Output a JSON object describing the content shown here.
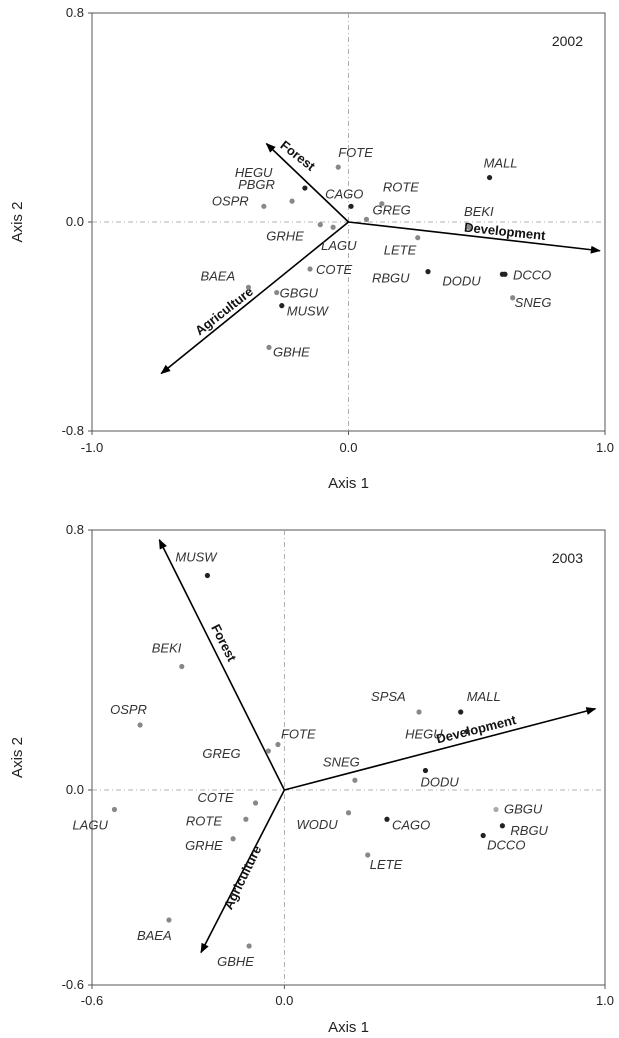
{
  "chart_data": [
    {
      "type": "scatter",
      "year_label": "2002",
      "xlabel": "Axis 1",
      "ylabel": "Axis 2",
      "xlim": [
        -1.0,
        1.0
      ],
      "ylim": [
        -0.8,
        0.8
      ],
      "xticks": [
        "-1.0",
        "0.0",
        "1.0"
      ],
      "yticks": [
        "0.8",
        "0.0",
        "-0.8"
      ],
      "vectors": [
        {
          "name": "Forest",
          "x": -0.32,
          "y": 0.3
        },
        {
          "name": "Development",
          "x": 0.98,
          "y": -0.11
        },
        {
          "name": "Agriculture",
          "x": -0.73,
          "y": -0.58
        }
      ],
      "points": [
        {
          "label": "FOTE",
          "x": -0.04,
          "y": 0.21,
          "color": "#888888"
        },
        {
          "label": "MALL",
          "x": 0.55,
          "y": 0.17,
          "color": "#222222"
        },
        {
          "label": "HEGU",
          "x": -0.17,
          "y": 0.13,
          "color": "#222222"
        },
        {
          "label": "CAGO",
          "x": 0.01,
          "y": 0.06,
          "color": "#222222"
        },
        {
          "label": "ROTE",
          "x": 0.13,
          "y": 0.07,
          "color": "#888888"
        },
        {
          "label": "PBGR",
          "x": -0.22,
          "y": 0.08,
          "color": "#888888"
        },
        {
          "label": "OSPR",
          "x": -0.33,
          "y": 0.06,
          "color": "#888888"
        },
        {
          "label": "GREG",
          "x": 0.07,
          "y": 0.01,
          "color": "#888888"
        },
        {
          "label": "BEKI",
          "x": 0.47,
          "y": -0.02,
          "color": "#888888"
        },
        {
          "label": "GRHE",
          "x": -0.11,
          "y": -0.01,
          "color": "#888888"
        },
        {
          "label": "LAGU",
          "x": -0.06,
          "y": -0.02,
          "color": "#888888"
        },
        {
          "label": "LETE",
          "x": 0.27,
          "y": -0.06,
          "color": "#888888"
        },
        {
          "label": "COTE",
          "x": -0.15,
          "y": -0.18,
          "color": "#888888"
        },
        {
          "label": "RBGU",
          "x": 0.31,
          "y": -0.19,
          "color": "#222222"
        },
        {
          "label": "DODU",
          "x": 0.6,
          "y": -0.2,
          "color": "#222222"
        },
        {
          "label": "DCCO",
          "x": 0.61,
          "y": -0.2,
          "color": "#222222"
        },
        {
          "label": "BAEA",
          "x": -0.39,
          "y": -0.25,
          "color": "#888888"
        },
        {
          "label": "GBGU",
          "x": -0.28,
          "y": -0.27,
          "color": "#888888"
        },
        {
          "label": "SNEG",
          "x": 0.64,
          "y": -0.29,
          "color": "#888888"
        },
        {
          "label": "MUSW",
          "x": -0.26,
          "y": -0.32,
          "color": "#222222"
        },
        {
          "label": "GBHE",
          "x": -0.31,
          "y": -0.48,
          "color": "#888888"
        }
      ]
    },
    {
      "type": "scatter",
      "year_label": "2003",
      "xlabel": "Axis 1",
      "ylabel": "Axis 2",
      "xlim": [
        -0.6,
        1.0
      ],
      "ylim": [
        -0.6,
        0.8
      ],
      "xticks": [
        "-0.6",
        "0.0",
        "1.0"
      ],
      "yticks": [
        "0.8",
        "0.0",
        "-0.6"
      ],
      "vectors": [
        {
          "name": "Forest",
          "x": -0.39,
          "y": 0.77
        },
        {
          "name": "Development",
          "x": 0.97,
          "y": 0.25
        },
        {
          "name": "Agriculture",
          "x": -0.26,
          "y": -0.5
        }
      ],
      "points": [
        {
          "label": "MUSW",
          "x": -0.24,
          "y": 0.66,
          "color": "#222222"
        },
        {
          "label": "BEKI",
          "x": -0.32,
          "y": 0.38,
          "color": "#888888"
        },
        {
          "label": "SPSA",
          "x": 0.42,
          "y": 0.24,
          "color": "#888888"
        },
        {
          "label": "MALL",
          "x": 0.55,
          "y": 0.24,
          "color": "#222222"
        },
        {
          "label": "OSPR",
          "x": -0.45,
          "y": 0.2,
          "color": "#888888"
        },
        {
          "label": "HEGU",
          "x": 0.57,
          "y": 0.18,
          "color": "#222222"
        },
        {
          "label": "FOTE",
          "x": -0.02,
          "y": 0.14,
          "color": "#888888"
        },
        {
          "label": "GREG",
          "x": -0.05,
          "y": 0.12,
          "color": "#888888"
        },
        {
          "label": "SNEG",
          "x": 0.22,
          "y": 0.03,
          "color": "#888888"
        },
        {
          "label": "DODU",
          "x": 0.44,
          "y": 0.06,
          "color": "#222222"
        },
        {
          "label": "COTE",
          "x": -0.09,
          "y": -0.04,
          "color": "#888888"
        },
        {
          "label": "GBGU",
          "x": 0.66,
          "y": -0.06,
          "color": "#aaaaaa"
        },
        {
          "label": "LAGU",
          "x": -0.53,
          "y": -0.06,
          "color": "#888888"
        },
        {
          "label": "WODU",
          "x": 0.2,
          "y": -0.07,
          "color": "#888888"
        },
        {
          "label": "ROTE",
          "x": -0.12,
          "y": -0.09,
          "color": "#888888"
        },
        {
          "label": "CAGO",
          "x": 0.32,
          "y": -0.09,
          "color": "#222222"
        },
        {
          "label": "RBGU",
          "x": 0.68,
          "y": -0.11,
          "color": "#222222"
        },
        {
          "label": "DCCO",
          "x": 0.62,
          "y": -0.14,
          "color": "#222222"
        },
        {
          "label": "GRHE",
          "x": -0.16,
          "y": -0.15,
          "color": "#888888"
        },
        {
          "label": "LETE",
          "x": 0.26,
          "y": -0.2,
          "color": "#888888"
        },
        {
          "label": "BAEA",
          "x": -0.36,
          "y": -0.4,
          "color": "#888888"
        },
        {
          "label": "GBHE",
          "x": -0.11,
          "y": -0.48,
          "color": "#888888"
        }
      ]
    }
  ]
}
